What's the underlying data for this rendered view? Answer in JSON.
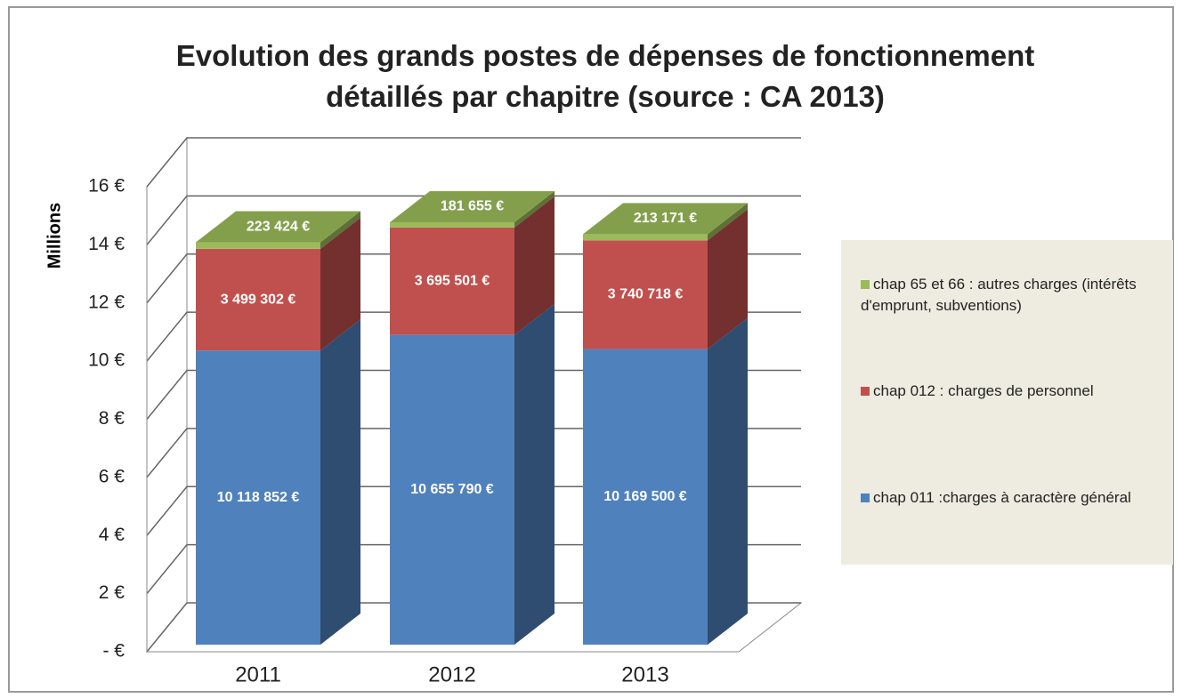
{
  "chart_data": {
    "type": "bar3d_stacked",
    "title": "Evolution des grands postes de dépenses de fonctionnement détaillés par chapitre (source : CA 2013)",
    "y_label": "Millions",
    "categories": [
      "2011",
      "2012",
      "2013"
    ],
    "series": [
      {
        "name": "chap 011 :charges à caractère général",
        "color": "#4f81bd",
        "values": [
          10.118852,
          10.65579,
          10.1695
        ],
        "value_labels": [
          "10 118 852 €",
          "10 655 790 €",
          "10 169 500 €"
        ]
      },
      {
        "name": "chap 012 : charges de personnel",
        "color": "#c0504d",
        "values": [
          3.499302,
          3.695501,
          3.740718
        ],
        "value_labels": [
          "3 499 302 €",
          "3 695 501 €",
          "3 740 718 €"
        ]
      },
      {
        "name": "chap 65 et 66 : autres charges (intérêts d'emprunt, subventions)",
        "color": "#9bbb59",
        "values": [
          0.223424,
          0.181655,
          0.213171
        ],
        "value_labels": [
          "223 424 €",
          "181 655 €",
          "213 171 €"
        ]
      }
    ],
    "ylim": [
      0,
      16
    ],
    "yticks": [
      {
        "value": 0,
        "label": "-  €"
      },
      {
        "value": 2,
        "label": "2 €"
      },
      {
        "value": 4,
        "label": "4 €"
      },
      {
        "value": 6,
        "label": "6 €"
      },
      {
        "value": 8,
        "label": "8 €"
      },
      {
        "value": 10,
        "label": "10 €"
      },
      {
        "value": 12,
        "label": "12 €"
      },
      {
        "value": 14,
        "label": "14 €"
      },
      {
        "value": 16,
        "label": "16 €"
      }
    ],
    "grid": true,
    "legend": "right"
  }
}
